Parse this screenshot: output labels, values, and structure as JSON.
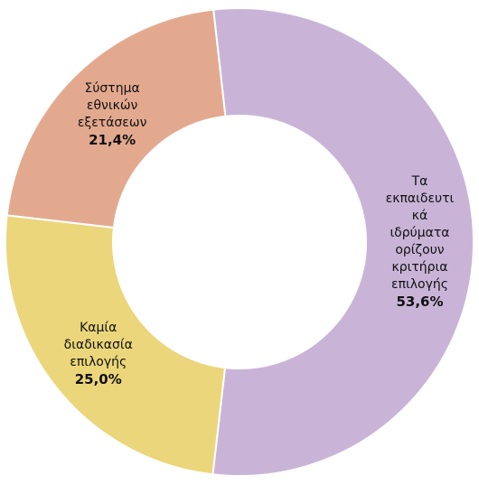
{
  "chart_data": {
    "type": "donut",
    "categories": [
      "Τα εκπαιδευτικά ιδρύματα ορίζουν κριτήρια επιλογής",
      "Καμία διαδικασία επιλογής",
      "Σύστημα εθνικών εξετάσεων"
    ],
    "values": [
      53.6,
      25.0,
      21.4
    ],
    "value_labels": [
      "53,6%",
      "25,0%",
      "21,4%"
    ],
    "colors": [
      "#c9b4d8",
      "#ebd67b",
      "#e3a98f"
    ]
  }
}
